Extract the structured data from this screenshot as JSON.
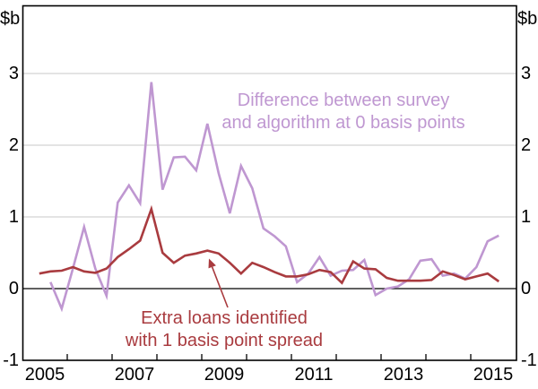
{
  "chart_data": {
    "type": "line",
    "unit_label_left": "$b",
    "unit_label_right": "$b",
    "ylim": [
      -1,
      3.95
    ],
    "y_ticks": [
      {
        "value": 3,
        "label": "3"
      },
      {
        "value": 2,
        "label": "2"
      },
      {
        "value": 1,
        "label": "1"
      },
      {
        "value": 0,
        "label": "0"
      },
      {
        "value": -1,
        "label": "-1"
      }
    ],
    "gridline_values": [
      1,
      2,
      3
    ],
    "zero_line_value": 0,
    "x_year_tick_marks": [
      2006,
      2007,
      2008,
      2009,
      2010,
      2011,
      2012,
      2013,
      2014,
      2015
    ],
    "x_year_labels": [
      {
        "year": 2005,
        "label": "2005"
      },
      {
        "year": 2007,
        "label": "2007"
      },
      {
        "year": 2009,
        "label": "2009"
      },
      {
        "year": 2011,
        "label": "2011"
      },
      {
        "year": 2013,
        "label": "2013"
      },
      {
        "year": 2015,
        "label": "2015"
      }
    ],
    "xlim_years": [
      2005,
      2016.02
    ],
    "grid_color": "#c9c9c9",
    "axis_color": "#000000",
    "series": [
      {
        "name": "Difference between survey and algorithm at 0 basis points",
        "color": "#bf97d1",
        "x": [
          2005.625,
          2005.875,
          2006.125,
          2006.375,
          2006.625,
          2006.875,
          2007.125,
          2007.375,
          2007.625,
          2007.875,
          2008.125,
          2008.375,
          2008.625,
          2008.875,
          2009.125,
          2009.375,
          2009.625,
          2009.875,
          2010.125,
          2010.375,
          2010.625,
          2010.875,
          2011.125,
          2011.375,
          2011.625,
          2011.875,
          2012.125,
          2012.375,
          2012.625,
          2012.875,
          2013.125,
          2013.375,
          2013.625,
          2013.875,
          2014.125,
          2014.375,
          2014.625,
          2014.875,
          2015.125,
          2015.375,
          2015.625
        ],
        "values": [
          0.09,
          -0.28,
          0.28,
          0.86,
          0.28,
          -0.1,
          1.2,
          1.44,
          1.19,
          2.88,
          1.38,
          1.83,
          1.84,
          1.65,
          2.3,
          1.61,
          1.05,
          1.71,
          1.4,
          0.84,
          0.73,
          0.59,
          0.09,
          0.21,
          0.44,
          0.18,
          0.25,
          0.26,
          0.4,
          -0.09,
          0.0,
          0.03,
          0.13,
          0.39,
          0.41,
          0.18,
          0.21,
          0.14,
          0.3,
          0.66,
          0.74
        ]
      },
      {
        "name": "Extra loans identified with 1 basis point spread",
        "color": "#a93b3f",
        "x": [
          2005.375,
          2005.625,
          2005.875,
          2006.125,
          2006.375,
          2006.625,
          2006.875,
          2007.125,
          2007.375,
          2007.625,
          2007.875,
          2008.125,
          2008.375,
          2008.625,
          2008.875,
          2009.125,
          2009.375,
          2009.625,
          2009.875,
          2010.125,
          2010.375,
          2010.625,
          2010.875,
          2011.125,
          2011.375,
          2011.625,
          2011.875,
          2012.125,
          2012.375,
          2012.625,
          2012.875,
          2013.125,
          2013.375,
          2013.625,
          2013.875,
          2014.125,
          2014.375,
          2014.625,
          2014.875,
          2015.125,
          2015.375,
          2015.625
        ],
        "values": [
          0.21,
          0.24,
          0.25,
          0.3,
          0.24,
          0.22,
          0.28,
          0.44,
          0.55,
          0.67,
          1.11,
          0.5,
          0.36,
          0.46,
          0.49,
          0.53,
          0.49,
          0.36,
          0.21,
          0.36,
          0.3,
          0.23,
          0.17,
          0.17,
          0.2,
          0.26,
          0.23,
          0.08,
          0.38,
          0.28,
          0.27,
          0.15,
          0.11,
          0.11,
          0.11,
          0.12,
          0.24,
          0.19,
          0.13,
          0.17,
          0.21,
          0.1
        ]
      }
    ],
    "annotations": [
      {
        "target_series": 0,
        "line1": "Difference between survey",
        "line2": "and algorithm at 0 basis points",
        "color": "#bf97d1",
        "has_arrow": false
      },
      {
        "target_series": 1,
        "line1": "Extra loans identified",
        "line2": "with 1 basis point spread",
        "color": "#a93b3f",
        "has_arrow": true
      }
    ]
  }
}
